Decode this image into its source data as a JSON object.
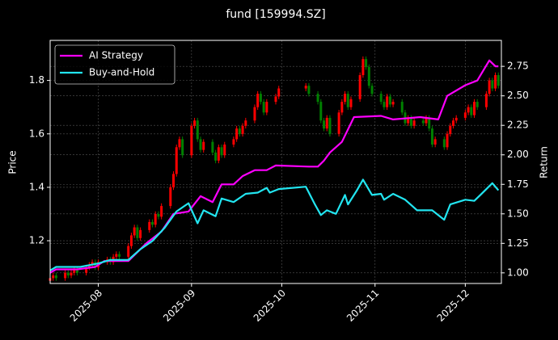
{
  "chart_data": {
    "type": "candlestick",
    "title": "fund [159994.SZ]",
    "ylabel": "Price",
    "y2label": "Return",
    "x": [
      197,
      198,
      199,
      202,
      203,
      204,
      205,
      206,
      209,
      210,
      211,
      212,
      213,
      216,
      217,
      218,
      219,
      220,
      223,
      224,
      225,
      226,
      227,
      230,
      231,
      232,
      233,
      234,
      237,
      238,
      239,
      240,
      241,
      244,
      245,
      246,
      247,
      248,
      251,
      252,
      253,
      254,
      255,
      258,
      259,
      260,
      261,
      262,
      265,
      266,
      267,
      268,
      269,
      272,
      273,
      282,
      283,
      286,
      287,
      288,
      289,
      290,
      293,
      294,
      295,
      296,
      297,
      300,
      301,
      302,
      303,
      304,
      307,
      308,
      309,
      310,
      311,
      314,
      315,
      316,
      317,
      318,
      321,
      322,
      323,
      324,
      325,
      328,
      329,
      330,
      331,
      332,
      335,
      336,
      337,
      338,
      339,
      342,
      343,
      344,
      345,
      346
    ],
    "open": [
      1.05,
      1.06,
      1.07,
      1.06,
      1.08,
      1.07,
      1.08,
      1.09,
      1.08,
      1.1,
      1.11,
      1.12,
      1.1,
      1.12,
      1.13,
      1.12,
      1.14,
      1.15,
      1.14,
      1.18,
      1.22,
      1.25,
      1.21,
      1.24,
      1.27,
      1.26,
      1.3,
      1.29,
      1.33,
      1.4,
      1.45,
      1.55,
      1.58,
      1.52,
      1.63,
      1.65,
      1.58,
      1.54,
      1.57,
      1.53,
      1.5,
      1.55,
      1.52,
      1.56,
      1.58,
      1.62,
      1.6,
      1.63,
      1.65,
      1.7,
      1.75,
      1.72,
      1.68,
      1.72,
      1.74,
      1.77,
      1.78,
      1.75,
      1.72,
      1.65,
      1.62,
      1.66,
      1.6,
      1.68,
      1.72,
      1.75,
      1.7,
      1.73,
      1.82,
      1.88,
      1.85,
      1.78,
      1.75,
      1.72,
      1.7,
      1.74,
      1.71,
      1.72,
      1.68,
      1.64,
      1.66,
      1.63,
      1.65,
      1.64,
      1.66,
      1.62,
      1.56,
      1.58,
      1.55,
      1.6,
      1.63,
      1.65,
      1.66,
      1.68,
      1.7,
      1.67,
      1.72,
      1.7,
      1.75,
      1.8,
      1.77,
      1.82
    ],
    "high": [
      1.07,
      1.08,
      1.08,
      1.09,
      1.09,
      1.09,
      1.1,
      1.1,
      1.11,
      1.12,
      1.13,
      1.13,
      1.13,
      1.14,
      1.14,
      1.15,
      1.16,
      1.16,
      1.19,
      1.23,
      1.26,
      1.26,
      1.25,
      1.28,
      1.28,
      1.31,
      1.31,
      1.34,
      1.41,
      1.46,
      1.56,
      1.59,
      1.59,
      1.64,
      1.66,
      1.66,
      1.59,
      1.58,
      1.58,
      1.54,
      1.56,
      1.56,
      1.57,
      1.59,
      1.63,
      1.63,
      1.64,
      1.66,
      1.71,
      1.76,
      1.76,
      1.73,
      1.73,
      1.75,
      1.78,
      1.79,
      1.79,
      1.76,
      1.73,
      1.66,
      1.67,
      1.67,
      1.69,
      1.73,
      1.76,
      1.76,
      1.74,
      1.83,
      1.89,
      1.89,
      1.86,
      1.79,
      1.76,
      1.73,
      1.75,
      1.75,
      1.73,
      1.73,
      1.69,
      1.67,
      1.67,
      1.66,
      1.66,
      1.67,
      1.67,
      1.63,
      1.59,
      1.59,
      1.61,
      1.64,
      1.66,
      1.67,
      1.69,
      1.71,
      1.71,
      1.73,
      1.73,
      1.76,
      1.81,
      1.81,
      1.83,
      1.83
    ],
    "low": [
      1.04,
      1.05,
      1.05,
      1.05,
      1.06,
      1.06,
      1.07,
      1.07,
      1.07,
      1.09,
      1.1,
      1.09,
      1.09,
      1.11,
      1.11,
      1.11,
      1.13,
      1.13,
      1.13,
      1.17,
      1.21,
      1.2,
      1.2,
      1.23,
      1.25,
      1.25,
      1.28,
      1.28,
      1.32,
      1.39,
      1.44,
      1.54,
      1.51,
      1.51,
      1.62,
      1.57,
      1.53,
      1.53,
      1.52,
      1.49,
      1.49,
      1.51,
      1.51,
      1.55,
      1.57,
      1.59,
      1.59,
      1.62,
      1.64,
      1.69,
      1.71,
      1.67,
      1.67,
      1.71,
      1.73,
      1.76,
      1.74,
      1.71,
      1.64,
      1.61,
      1.61,
      1.59,
      1.59,
      1.67,
      1.71,
      1.69,
      1.69,
      1.72,
      1.81,
      1.84,
      1.77,
      1.74,
      1.71,
      1.69,
      1.69,
      1.7,
      1.7,
      1.67,
      1.63,
      1.63,
      1.62,
      1.62,
      1.63,
      1.63,
      1.61,
      1.55,
      1.55,
      1.54,
      1.54,
      1.59,
      1.62,
      1.64,
      1.65,
      1.67,
      1.66,
      1.66,
      1.69,
      1.69,
      1.74,
      1.76,
      1.76,
      1.77
    ],
    "close": [
      1.06,
      1.07,
      1.06,
      1.08,
      1.07,
      1.08,
      1.09,
      1.08,
      1.1,
      1.11,
      1.12,
      1.1,
      1.12,
      1.13,
      1.12,
      1.14,
      1.15,
      1.14,
      1.18,
      1.22,
      1.25,
      1.21,
      1.24,
      1.27,
      1.26,
      1.3,
      1.29,
      1.33,
      1.4,
      1.45,
      1.55,
      1.58,
      1.52,
      1.63,
      1.65,
      1.58,
      1.54,
      1.57,
      1.53,
      1.5,
      1.55,
      1.52,
      1.56,
      1.58,
      1.62,
      1.6,
      1.63,
      1.65,
      1.7,
      1.75,
      1.72,
      1.68,
      1.72,
      1.74,
      1.77,
      1.78,
      1.75,
      1.72,
      1.65,
      1.62,
      1.66,
      1.6,
      1.68,
      1.72,
      1.75,
      1.7,
      1.73,
      1.82,
      1.88,
      1.85,
      1.78,
      1.75,
      1.72,
      1.7,
      1.74,
      1.71,
      1.72,
      1.68,
      1.64,
      1.66,
      1.63,
      1.65,
      1.64,
      1.66,
      1.62,
      1.56,
      1.58,
      1.55,
      1.6,
      1.63,
      1.65,
      1.66,
      1.68,
      1.7,
      1.67,
      1.72,
      1.7,
      1.75,
      1.8,
      1.77,
      1.82,
      1.78
    ],
    "up_color": "#ff0000",
    "down_color": "#008000",
    "series": [
      {
        "name": "AI Strategy",
        "color": "#ff00ff",
        "axis": "y2",
        "x": [
          197,
          199,
          206,
          212,
          215,
          223,
          229,
          234,
          238,
          243,
          247,
          251,
          254,
          258,
          261,
          265,
          269,
          272,
          283,
          286,
          288,
          290,
          294,
          298,
          307,
          311,
          320,
          326,
          329,
          335,
          339,
          343,
          345,
          346
        ],
        "values": [
          1.0,
          1.03,
          1.03,
          1.05,
          1.1,
          1.1,
          1.25,
          1.35,
          1.5,
          1.52,
          1.65,
          1.6,
          1.75,
          1.75,
          1.82,
          1.87,
          1.87,
          1.91,
          1.9,
          1.9,
          1.95,
          2.02,
          2.11,
          2.32,
          2.33,
          2.3,
          2.32,
          2.3,
          2.5,
          2.59,
          2.63,
          2.8,
          2.75,
          2.75
        ]
      },
      {
        "name": "Buy-and-Hold",
        "color": "#22e5f0",
        "axis": "y2",
        "x": [
          197,
          199,
          207,
          213,
          217,
          223,
          227,
          231,
          235,
          239,
          243,
          246,
          248,
          252,
          254,
          258,
          262,
          266,
          269,
          270,
          273,
          282,
          285,
          287,
          289,
          292,
          295,
          296,
          299,
          301,
          304,
          307,
          308,
          311,
          315,
          319,
          324,
          327,
          328,
          330,
          335,
          338,
          340,
          344,
          346
        ],
        "values": [
          1.02,
          1.05,
          1.05,
          1.08,
          1.11,
          1.11,
          1.2,
          1.27,
          1.38,
          1.52,
          1.59,
          1.42,
          1.53,
          1.48,
          1.63,
          1.6,
          1.67,
          1.68,
          1.72,
          1.68,
          1.71,
          1.73,
          1.58,
          1.49,
          1.53,
          1.5,
          1.66,
          1.58,
          1.7,
          1.79,
          1.66,
          1.67,
          1.62,
          1.67,
          1.62,
          1.53,
          1.53,
          1.47,
          1.45,
          1.58,
          1.62,
          1.61,
          1.66,
          1.76,
          1.7
        ]
      }
    ],
    "xlim": [
      197,
      347
    ],
    "ylim": [
      1.04,
      1.95
    ],
    "y2lim": [
      0.91,
      2.97
    ],
    "xticks": [
      {
        "value": 213,
        "label": "2025-08"
      },
      {
        "value": 244,
        "label": "2025-09"
      },
      {
        "value": 274,
        "label": "2025-10"
      },
      {
        "value": 305,
        "label": "2025-11"
      },
      {
        "value": 335,
        "label": "2025-12"
      }
    ],
    "yticks": [
      1.2,
      1.4,
      1.6,
      1.8
    ],
    "y2ticks": [
      {
        "value": 1,
        "label": "1.00"
      },
      1.25,
      {
        "value": 1.5,
        "label": "1.50"
      },
      1.75,
      {
        "value": 2,
        "label": "2.00"
      },
      2.25,
      {
        "value": 2.5,
        "label": "2.50"
      },
      2.75
    ],
    "grid": true,
    "legend": "upper left"
  }
}
